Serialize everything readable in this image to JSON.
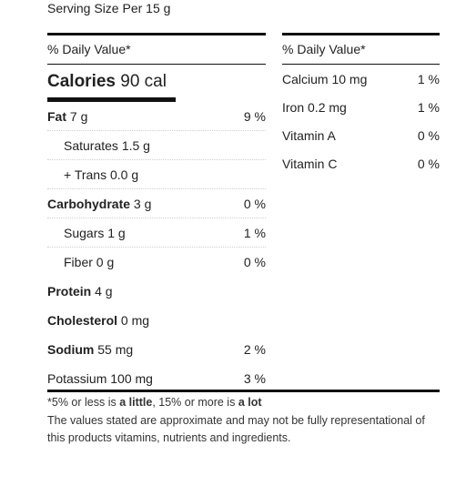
{
  "serving": "Serving Size Per 15 g",
  "dv_header": "% Daily Value*",
  "calories": {
    "label": "Calories",
    "value": "90 cal"
  },
  "left_rows": [
    {
      "name": "Fat",
      "amount": "7 g",
      "dv": "9 %"
    },
    {
      "name": "Saturates",
      "amount": "1.5 g",
      "dv": ""
    },
    {
      "name": "+ Trans",
      "amount": "0.0 g",
      "dv": ""
    },
    {
      "name": "Carbohydrate",
      "amount": "3 g",
      "dv": "0 %"
    },
    {
      "name": "Sugars",
      "amount": "1 g",
      "dv": "1 %"
    },
    {
      "name": "Fiber",
      "amount": "0 g",
      "dv": "0 %"
    },
    {
      "name": "Protein",
      "amount": "4 g",
      "dv": ""
    },
    {
      "name": "Cholesterol",
      "amount": "0 mg",
      "dv": ""
    },
    {
      "name": "Sodium",
      "amount": "55 mg",
      "dv": "2 %"
    },
    {
      "name": "Potassium",
      "amount": "100 mg",
      "dv": "3 %"
    }
  ],
  "right_rows": [
    {
      "name": "Calcium",
      "amount": "10 mg",
      "dv": "1 %"
    },
    {
      "name": "Iron",
      "amount": "0.2 mg",
      "dv": "1 %"
    },
    {
      "name": "Vitamin A",
      "amount": "",
      "dv": "0 %"
    },
    {
      "name": "Vitamin C",
      "amount": "",
      "dv": "0 %"
    }
  ],
  "footer": {
    "note_prefix": "*5% or less is ",
    "note_little": "a little",
    "note_mid": ", 15% or more is ",
    "note_lot": "a lot",
    "desc": "The values stated are approximate and may not be fully representational of this products vitamins, nutrients and ingredients."
  }
}
